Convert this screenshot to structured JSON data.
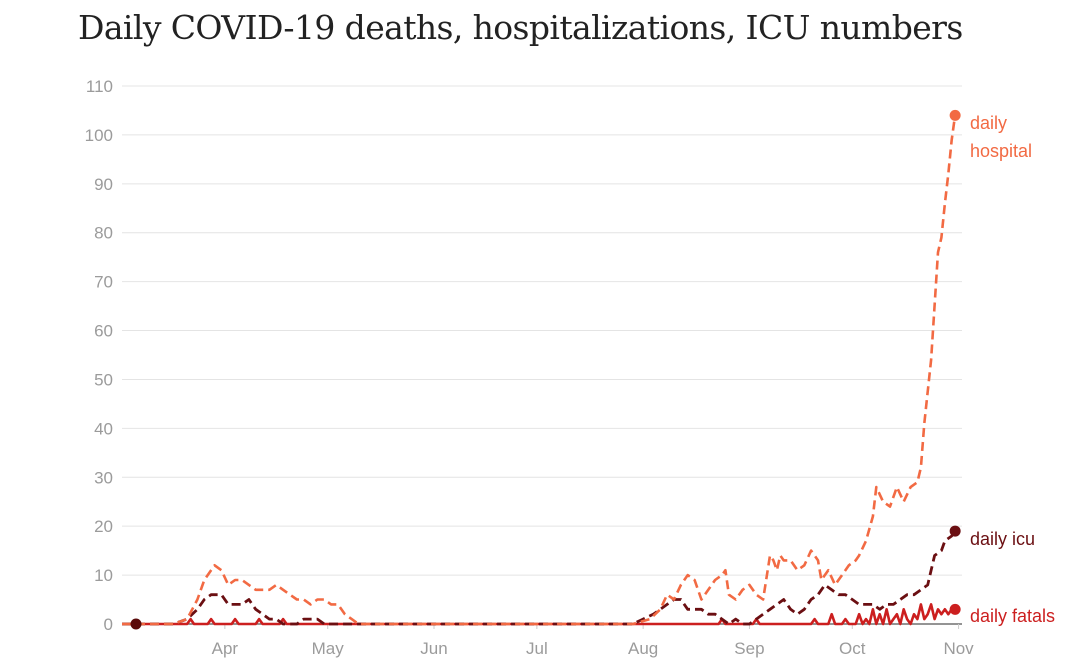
{
  "chart_data": {
    "type": "line",
    "title": "Daily COVID-19 deaths, hospitalizations, ICU numbers",
    "xlabel": "",
    "ylabel": "",
    "ylim": [
      0,
      110
    ],
    "yticks": [
      0,
      10,
      20,
      30,
      40,
      50,
      60,
      70,
      80,
      90,
      100,
      110
    ],
    "x_unit": "day of year 2021 (1 = Mar 1)",
    "xlim": [
      1,
      246
    ],
    "xticks": [
      {
        "label": "Apr",
        "day": 31
      },
      {
        "label": "May",
        "day": 61
      },
      {
        "label": "Jun",
        "day": 92
      },
      {
        "label": "Jul",
        "day": 122
      },
      {
        "label": "Aug",
        "day": 153
      },
      {
        "label": "Sep",
        "day": 184
      },
      {
        "label": "Oct",
        "day": 214
      },
      {
        "label": "Nov",
        "day": 245
      }
    ],
    "grid": true,
    "colors": {
      "hospital": "#f26a43",
      "icu": "#6b0f12",
      "fatal": "#cc1f1f",
      "start_dot": "#5a0a0a",
      "axis": "#555555",
      "grid": "#e4e4e4",
      "tick_text": "#9b9b9b"
    },
    "series": [
      {
        "name": "daily hospital",
        "label_lines": [
          "daily",
          "hospital"
        ],
        "style": "dashed",
        "points": [
          [
            1,
            0
          ],
          [
            16,
            0
          ],
          [
            20,
            1
          ],
          [
            23,
            5
          ],
          [
            25,
            9
          ],
          [
            27,
            11
          ],
          [
            28,
            12
          ],
          [
            30,
            11
          ],
          [
            32,
            8
          ],
          [
            34,
            9
          ],
          [
            36,
            9
          ],
          [
            38,
            8
          ],
          [
            40,
            7
          ],
          [
            42,
            7
          ],
          [
            44,
            7
          ],
          [
            46,
            8
          ],
          [
            48,
            7
          ],
          [
            50,
            6
          ],
          [
            52,
            5
          ],
          [
            54,
            5
          ],
          [
            56,
            4
          ],
          [
            58,
            5
          ],
          [
            60,
            5
          ],
          [
            62,
            4
          ],
          [
            64,
            4
          ],
          [
            66,
            2
          ],
          [
            68,
            1
          ],
          [
            70,
            0
          ],
          [
            150,
            0
          ],
          [
            155,
            1
          ],
          [
            158,
            3
          ],
          [
            160,
            6
          ],
          [
            162,
            5
          ],
          [
            164,
            8
          ],
          [
            166,
            10
          ],
          [
            168,
            9
          ],
          [
            170,
            5
          ],
          [
            172,
            7
          ],
          [
            174,
            9
          ],
          [
            176,
            10
          ],
          [
            177,
            11
          ],
          [
            178,
            6
          ],
          [
            180,
            5
          ],
          [
            182,
            7
          ],
          [
            184,
            8
          ],
          [
            186,
            6
          ],
          [
            188,
            5
          ],
          [
            190,
            14
          ],
          [
            191,
            13
          ],
          [
            192,
            11
          ],
          [
            193,
            14
          ],
          [
            194,
            13
          ],
          [
            196,
            13
          ],
          [
            198,
            11
          ],
          [
            200,
            12
          ],
          [
            202,
            15
          ],
          [
            204,
            13
          ],
          [
            205,
            9
          ],
          [
            207,
            11
          ],
          [
            209,
            8
          ],
          [
            211,
            10
          ],
          [
            213,
            12
          ],
          [
            215,
            13
          ],
          [
            216,
            14
          ],
          [
            218,
            17
          ],
          [
            220,
            22
          ],
          [
            221,
            28
          ],
          [
            223,
            25
          ],
          [
            225,
            24
          ],
          [
            227,
            28
          ],
          [
            229,
            25
          ],
          [
            231,
            28
          ],
          [
            233,
            29
          ],
          [
            234,
            32
          ],
          [
            235,
            41
          ],
          [
            237,
            54
          ],
          [
            239,
            76
          ],
          [
            240,
            79
          ],
          [
            241,
            86
          ],
          [
            242,
            92
          ],
          [
            243,
            99
          ],
          [
            244,
            104
          ]
        ]
      },
      {
        "name": "daily icu",
        "label_lines": [
          "daily icu"
        ],
        "style": "dashed",
        "points": [
          [
            1,
            0
          ],
          [
            16,
            0
          ],
          [
            20,
            1
          ],
          [
            23,
            3
          ],
          [
            25,
            5
          ],
          [
            27,
            6
          ],
          [
            30,
            6
          ],
          [
            32,
            4
          ],
          [
            34,
            4
          ],
          [
            36,
            4
          ],
          [
            38,
            5
          ],
          [
            40,
            3
          ],
          [
            42,
            2
          ],
          [
            44,
            1
          ],
          [
            46,
            1
          ],
          [
            48,
            0
          ],
          [
            52,
            0
          ],
          [
            54,
            1
          ],
          [
            58,
            1
          ],
          [
            60,
            0
          ],
          [
            150,
            0
          ],
          [
            153,
            1
          ],
          [
            156,
            2
          ],
          [
            158,
            3
          ],
          [
            160,
            4
          ],
          [
            162,
            5
          ],
          [
            164,
            5
          ],
          [
            166,
            3
          ],
          [
            168,
            3
          ],
          [
            170,
            3
          ],
          [
            172,
            2
          ],
          [
            174,
            2
          ],
          [
            176,
            1
          ],
          [
            178,
            0
          ],
          [
            180,
            1
          ],
          [
            182,
            0
          ],
          [
            184,
            0
          ],
          [
            186,
            1
          ],
          [
            188,
            2
          ],
          [
            190,
            3
          ],
          [
            192,
            4
          ],
          [
            194,
            5
          ],
          [
            196,
            3
          ],
          [
            198,
            2
          ],
          [
            200,
            3
          ],
          [
            202,
            5
          ],
          [
            204,
            6
          ],
          [
            206,
            8
          ],
          [
            208,
            7
          ],
          [
            210,
            6
          ],
          [
            212,
            6
          ],
          [
            214,
            5
          ],
          [
            216,
            4
          ],
          [
            218,
            4
          ],
          [
            220,
            4
          ],
          [
            222,
            3
          ],
          [
            224,
            4
          ],
          [
            226,
            4
          ],
          [
            228,
            5
          ],
          [
            230,
            6
          ],
          [
            232,
            6
          ],
          [
            234,
            7
          ],
          [
            236,
            8
          ],
          [
            238,
            14
          ],
          [
            240,
            15
          ],
          [
            241,
            17
          ],
          [
            243,
            18
          ],
          [
            244,
            19
          ]
        ]
      },
      {
        "name": "daily fatals",
        "label_lines": [
          "daily fatals"
        ],
        "style": "solid",
        "points": [
          [
            1,
            0
          ],
          [
            20,
            0
          ],
          [
            21,
            1
          ],
          [
            22,
            0
          ],
          [
            26,
            0
          ],
          [
            27,
            1
          ],
          [
            28,
            0
          ],
          [
            33,
            0
          ],
          [
            34,
            1
          ],
          [
            35,
            0
          ],
          [
            40,
            0
          ],
          [
            41,
            1
          ],
          [
            42,
            0
          ],
          [
            47,
            0
          ],
          [
            48,
            1
          ],
          [
            49,
            0
          ],
          [
            150,
            0
          ],
          [
            175,
            0
          ],
          [
            176,
            1
          ],
          [
            177,
            0
          ],
          [
            185,
            0
          ],
          [
            186,
            1
          ],
          [
            187,
            0
          ],
          [
            202,
            0
          ],
          [
            203,
            1
          ],
          [
            204,
            0
          ],
          [
            207,
            0
          ],
          [
            208,
            2
          ],
          [
            209,
            0
          ],
          [
            211,
            0
          ],
          [
            212,
            1
          ],
          [
            213,
            0
          ],
          [
            215,
            0
          ],
          [
            216,
            2
          ],
          [
            217,
            0
          ],
          [
            218,
            1
          ],
          [
            219,
            0
          ],
          [
            220,
            3
          ],
          [
            221,
            0
          ],
          [
            222,
            2
          ],
          [
            223,
            0
          ],
          [
            224,
            3
          ],
          [
            225,
            0
          ],
          [
            226,
            1
          ],
          [
            227,
            2
          ],
          [
            228,
            0
          ],
          [
            229,
            3
          ],
          [
            230,
            1
          ],
          [
            231,
            0
          ],
          [
            232,
            2
          ],
          [
            233,
            1
          ],
          [
            234,
            4
          ],
          [
            235,
            1
          ],
          [
            236,
            2
          ],
          [
            237,
            4
          ],
          [
            238,
            1
          ],
          [
            239,
            3
          ],
          [
            240,
            2
          ],
          [
            241,
            3
          ],
          [
            242,
            2
          ],
          [
            243,
            3
          ],
          [
            244,
            3
          ]
        ]
      }
    ]
  }
}
